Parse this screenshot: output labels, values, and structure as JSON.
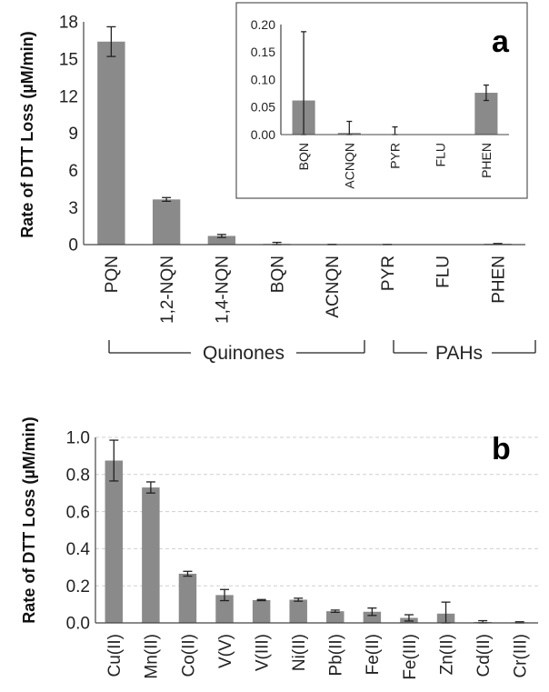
{
  "chart_data": [
    {
      "id": "a",
      "type": "bar",
      "panel_label": "a",
      "ylabel": "Rate of DTT Loss (µM/min)",
      "ylim": [
        0,
        18
      ],
      "yticks": [
        "0",
        "3",
        "6",
        "9",
        "12",
        "15",
        "18"
      ],
      "grid": false,
      "categories": [
        "PQN",
        "1,2-NQN",
        "1,4-NQN",
        "BQN",
        "ACNQN",
        "PYR",
        "FLU",
        "PHEN"
      ],
      "values": [
        16.4,
        3.65,
        0.7,
        0.06,
        0.003,
        0.0,
        0.0,
        0.075
      ],
      "errors": [
        1.2,
        0.15,
        0.12,
        0.12,
        0.02,
        0.014,
        0.0,
        0.014
      ],
      "groups": [
        {
          "label": "Quinones",
          "categories": [
            "PQN",
            "1,2-NQN",
            "1,4-NQN",
            "BQN",
            "ACNQN"
          ]
        },
        {
          "label": "PAHs",
          "categories": [
            "PYR",
            "FLU",
            "PHEN"
          ]
        }
      ],
      "inset": {
        "type": "bar",
        "ylim": [
          0,
          0.2
        ],
        "yticks": [
          "0.00",
          "0.05",
          "0.10",
          "0.15",
          "0.20"
        ],
        "categories": [
          "BQN",
          "ACNQN",
          "PYR",
          "FLU",
          "PHEN"
        ],
        "values": [
          0.062,
          0.003,
          0.0,
          0.0,
          0.076
        ],
        "errors": [
          0.125,
          0.021,
          0.014,
          0.0,
          0.014
        ]
      }
    },
    {
      "id": "b",
      "type": "bar",
      "panel_label": "b",
      "ylabel": "Rate of DTT Loss (µM/min)",
      "ylim": [
        0,
        1.0
      ],
      "yticks": [
        "0.0",
        "0.2",
        "0.4",
        "0.6",
        "0.8",
        "1.0"
      ],
      "grid": true,
      "categories": [
        "Cu(II)",
        "Mn(II)",
        "Co(II)",
        "V(V)",
        "V(III)",
        "Ni(II)",
        "Pb(II)",
        "Fe(II)",
        "Fe(III)",
        "Zn(II)",
        "Cd(II)",
        "Cr(III)"
      ],
      "values": [
        0.875,
        0.73,
        0.265,
        0.15,
        0.123,
        0.125,
        0.063,
        0.06,
        0.027,
        0.05,
        0.005,
        0.003
      ],
      "errors": [
        0.11,
        0.03,
        0.013,
        0.03,
        0.003,
        0.008,
        0.006,
        0.02,
        0.017,
        0.062,
        0.007,
        0.003
      ]
    }
  ]
}
